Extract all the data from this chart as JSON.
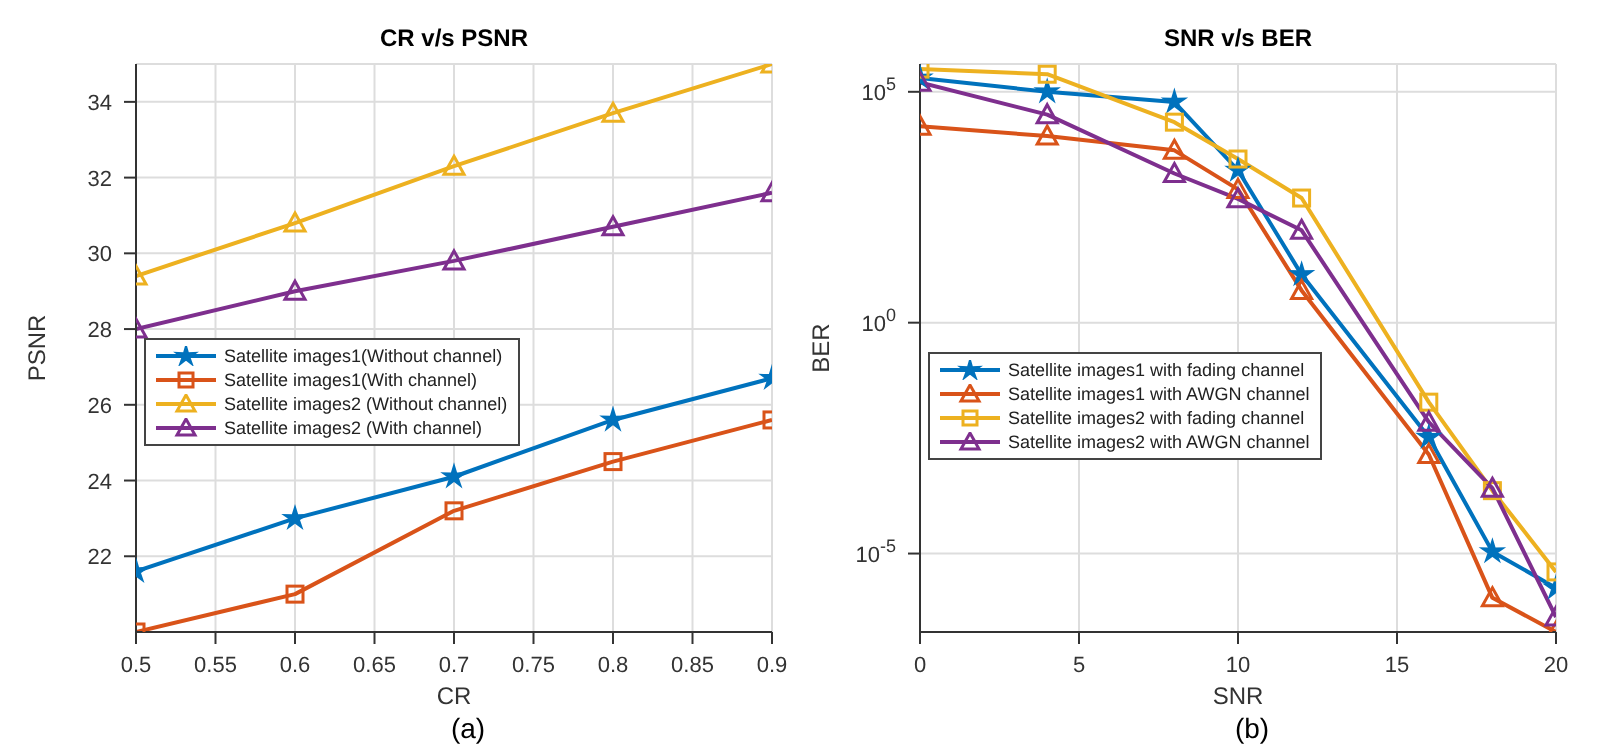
{
  "chart_data": [
    {
      "type": "line",
      "title": "CR v/s PSNR",
      "xlabel": "CR",
      "ylabel": "PSNR",
      "annotations": [
        "(a)"
      ],
      "x": [
        0.5,
        0.6,
        0.7,
        0.8,
        0.9
      ],
      "series": [
        {
          "name": "Satellite images1(Without channel)",
          "color": "#0072bd",
          "marker": "star",
          "values": [
            21.6,
            23.0,
            24.1,
            25.6,
            26.7
          ]
        },
        {
          "name": "Satellite images1(With channel)",
          "color": "#d95319",
          "marker": "square",
          "values": [
            20.0,
            21.0,
            23.2,
            24.5,
            25.6
          ]
        },
        {
          "name": "Satellite images2 (Without channel)",
          "color": "#edb120",
          "marker": "triangle",
          "values": [
            29.4,
            30.8,
            32.3,
            33.7,
            35.0
          ]
        },
        {
          "name": "Satellite images2 (With channel)",
          "color": "#7e2f8e",
          "marker": "triangle",
          "values": [
            28.0,
            29.0,
            29.8,
            30.7,
            31.6
          ]
        }
      ],
      "xlim": [
        0.5,
        0.9
      ],
      "xticks": [
        0.5,
        0.55,
        0.6,
        0.65,
        0.7,
        0.75,
        0.8,
        0.85,
        0.9
      ],
      "ylim": [
        20,
        35
      ],
      "yticks": [
        22,
        24,
        26,
        28,
        30,
        32,
        34
      ],
      "grid": true,
      "legend": "left",
      "line_style": "solid"
    },
    {
      "type": "line",
      "title": "SNR v/s BER",
      "xlabel": "SNR",
      "ylabel": "BER",
      "annotations": [
        "(b)"
      ],
      "x": [
        0,
        4,
        8,
        10,
        12,
        16,
        18,
        20
      ],
      "series": [
        {
          "name": "Satellite images1 with fading channel",
          "color": "#0072bd",
          "marker": "star",
          "values": [
            200000,
            100000,
            60000,
            2000,
            11,
            0.0033,
            1.1e-05,
            1.8e-06
          ]
        },
        {
          "name": "Satellite images1 with AWGN channel",
          "color": "#d95319",
          "marker": "triangle",
          "values": [
            18000,
            11000,
            5400,
            770,
            5,
            0.0014,
            1.1e-06,
            2e-07
          ]
        },
        {
          "name": "Satellite images2 with fading channel",
          "color": "#edb120",
          "marker": "square",
          "values": [
            310000,
            240000,
            22000,
            3500,
            500,
            0.019,
            0.00023,
            4e-06
          ]
        },
        {
          "name": "Satellite images2 with AWGN channel",
          "color": "#7e2f8e",
          "marker": "triangle",
          "values": [
            160000,
            32000,
            1700,
            480,
            100,
            0.007,
            0.00026,
            4.2e-07
          ]
        }
      ],
      "xlim": [
        0,
        20
      ],
      "xticks": [
        0,
        5,
        10,
        15,
        20
      ],
      "ylim": [
        2e-07,
        400000
      ],
      "log": "y",
      "yticks": [
        {
          "value": 1e-05,
          "label": "10$^{-5}$"
        },
        {
          "value": 1,
          "label": "10$^{0}$"
        },
        {
          "value": 100000,
          "label": "10$^{5}$"
        }
      ],
      "grid": true,
      "legend": "bottom left",
      "line_style": "solid"
    }
  ]
}
